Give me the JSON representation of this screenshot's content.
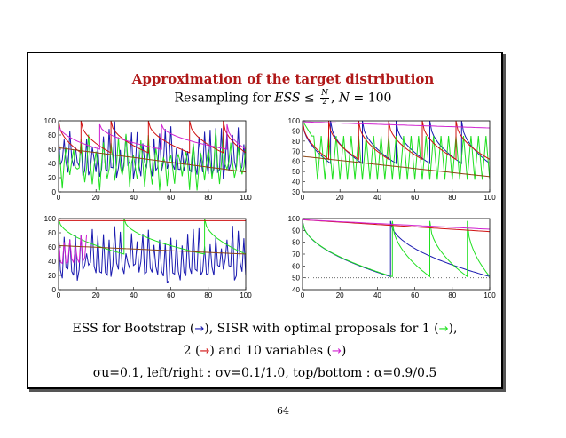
{
  "slide": {
    "title": "Approximation of the target distribution",
    "subtitle_prefix": "Resampling for ",
    "subtitle_ess": "ESS",
    "subtitle_leq": "≤",
    "subtitle_num": "N",
    "subtitle_den": "2",
    "subtitle_sep": ",",
    "subtitle_n": "N",
    "subtitle_eq": "= 100",
    "page_number": "64"
  },
  "caption": {
    "line1_a": "ESS for Bootstrap (",
    "line1_b": "), SISR with optimal proposals for 1 (",
    "line1_c": "),",
    "line2_a": "2 (",
    "line2_b": ") and 10 variables (",
    "line2_c": ")",
    "line3": "σu=0.1, left/right : σv=0.1/1.0, top/bottom : α=0.9/0.5",
    "arrow": "→"
  },
  "colors": {
    "bootstrap": "#1a1ab0",
    "sisr_1": "#20e020",
    "sisr_2": "#d01010",
    "sisr_10": "#d020d0",
    "trend": "#8b4513",
    "title": "#b01818"
  },
  "chart_data": [
    {
      "type": "line",
      "panel": "top-left",
      "x_ticks": [
        "0",
        "20",
        "40",
        "60",
        "80",
        "100"
      ],
      "y_ticks": [
        "0",
        "20",
        "40",
        "60",
        "80",
        "100"
      ],
      "xlim": [
        0,
        100
      ],
      "ylim": [
        0,
        100
      ],
      "series": [
        {
          "name": "Bootstrap",
          "color": "#1a1ab0",
          "style": "oscillating",
          "center": 48,
          "amp": 30,
          "period": 3,
          "seed": 3
        },
        {
          "name": "SISR 1 variable",
          "color": "#20e020",
          "style": "oscillating",
          "center": 40,
          "amp": 28,
          "period": 4,
          "seed": 7
        },
        {
          "name": "SISR 2 variables",
          "color": "#d01010",
          "style": "sawtooth",
          "resets": [
            0,
            12,
            28,
            48,
            70,
            88
          ],
          "top": 100,
          "floor": 55
        },
        {
          "name": "SISR 10 variables",
          "color": "#d020d0",
          "style": "sawtooth",
          "resets": [
            0,
            22,
            55,
            90
          ],
          "top": 95,
          "floor": 60
        },
        {
          "name": "trend",
          "color": "#8b4513",
          "style": "decay",
          "start": 62,
          "end": 28
        }
      ]
    },
    {
      "type": "line",
      "panel": "top-right",
      "x_ticks": [
        "0",
        "20",
        "40",
        "60",
        "80",
        "100"
      ],
      "y_ticks": [
        "30",
        "40",
        "50",
        "60",
        "70",
        "80",
        "90",
        "100"
      ],
      "xlim": [
        0,
        100
      ],
      "ylim": [
        30,
        100
      ],
      "series": [
        {
          "name": "Bootstrap",
          "color": "#1a1ab0",
          "style": "sawtooth",
          "resets": [
            0,
            15,
            32,
            50,
            68,
            85
          ],
          "top": 100,
          "floor": 58
        },
        {
          "name": "SISR 1 variable",
          "color": "#20e020",
          "style": "teeth",
          "period": 4,
          "top": 85,
          "floor": 42,
          "start": 6
        },
        {
          "name": "SISR 2 variables",
          "color": "#d01010",
          "style": "sawtooth",
          "resets": [
            0,
            14,
            30,
            46,
            64,
            82
          ],
          "top": 100,
          "floor": 62
        },
        {
          "name": "SISR 10 variables",
          "color": "#d020d0",
          "style": "decay",
          "start": 99,
          "end": 93
        },
        {
          "name": "trend",
          "color": "#8b4513",
          "style": "decay",
          "start": 65,
          "end": 45
        }
      ]
    },
    {
      "type": "line",
      "panel": "bottom-left",
      "x_ticks": [
        "0",
        "20",
        "40",
        "60",
        "80",
        "100"
      ],
      "y_ticks": [
        "0",
        "20",
        "40",
        "60",
        "80",
        "100"
      ],
      "xlim": [
        0,
        100
      ],
      "ylim": [
        0,
        100
      ],
      "series": [
        {
          "name": "Bootstrap",
          "color": "#1a1ab0",
          "style": "oscillating",
          "center": 42,
          "amp": 32,
          "period": 3,
          "seed": 11
        },
        {
          "name": "SISR 1 variable",
          "color": "#20e020",
          "style": "sawtooth",
          "resets": [
            0,
            35,
            78
          ],
          "top": 100,
          "floor": 50
        },
        {
          "name": "SISR 2 variables",
          "color": "#d01010",
          "style": "flat",
          "value": 97
        },
        {
          "name": "SISR 10 variables",
          "color": "#d020d0",
          "style": "oscillating",
          "center": 50,
          "amp": 18,
          "period": 3,
          "seed": 5,
          "until": 15
        },
        {
          "name": "trend",
          "color": "#8b4513",
          "style": "decay",
          "start": 62,
          "end": 50
        }
      ]
    },
    {
      "type": "line",
      "panel": "bottom-right",
      "x_ticks": [
        "0",
        "20",
        "40",
        "60",
        "80",
        "100"
      ],
      "y_ticks": [
        "40",
        "50",
        "60",
        "70",
        "80",
        "90",
        "100"
      ],
      "xlim": [
        0,
        100
      ],
      "ylim": [
        40,
        100
      ],
      "series": [
        {
          "name": "Bootstrap",
          "color": "#1a1ab0",
          "style": "sawtooth",
          "resets": [
            0,
            47
          ],
          "top": 98,
          "floor": 51
        },
        {
          "name": "SISR 1 variable",
          "color": "#20e020",
          "style": "sawtooth",
          "resets": [
            0,
            48,
            68,
            88
          ],
          "top": 98,
          "floor": 51
        },
        {
          "name": "SISR 2 variables",
          "color": "#d01010",
          "style": "decay",
          "start": 99,
          "end": 89
        },
        {
          "name": "SISR 10 variables",
          "color": "#d020d0",
          "style": "decay",
          "start": 99,
          "end": 91
        },
        {
          "name": "threshold",
          "color": "#555555",
          "style": "dotted",
          "value": 50
        }
      ]
    }
  ]
}
